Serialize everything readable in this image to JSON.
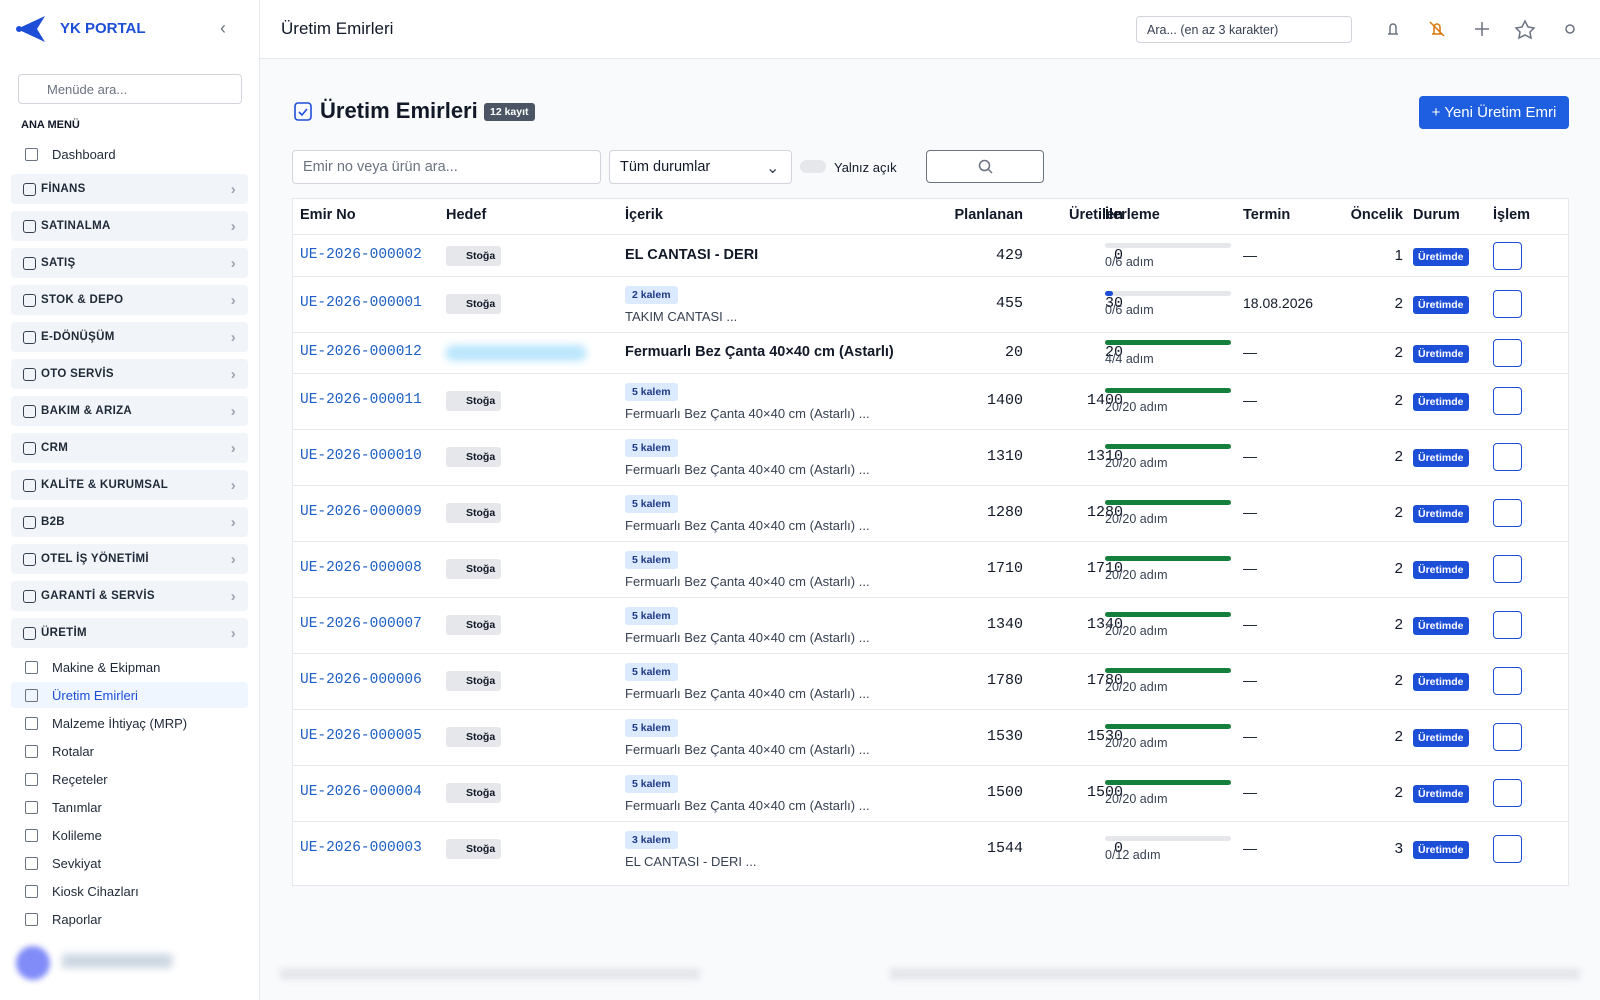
{
  "sidebar": {
    "brand": "YK PORTAL",
    "search_placeholder": "Menüde ara...",
    "section": "ANA MENÜ",
    "top_item": "Dashboard",
    "groups": [
      "FİNANS",
      "SATINALMA",
      "SATIŞ",
      "STOK & DEPO",
      "E-DÖNÜŞÜM",
      "OTO SERVİS",
      "BAKIM & ARIZA",
      "CRM",
      "KALİTE & KURUMSAL",
      "B2B",
      "OTEL İŞ YÖNETİMİ",
      "GARANTİ & SERVİS",
      "ÜRETİM"
    ],
    "sub_items": [
      "Makine & Ekipman",
      "Üretim Emirleri",
      "Malzeme İhtiyaç (MRP)",
      "Rotalar",
      "Reçeteler",
      "Tanımlar",
      "Kolileme",
      "Sevkiyat",
      "Kiosk Cihazları",
      "Raporlar"
    ]
  },
  "topbar": {
    "title": "Üretim Emirleri",
    "search_placeholder": "Ara... (en az 3 karakter)"
  },
  "page": {
    "title": "Üretim Emirleri",
    "count": "12 kayıt",
    "new_button": "+ Yeni Üretim Emri",
    "filter_placeholder": "Emir no veya ürün ara...",
    "status_select": "Tüm durumlar",
    "toggle_label": "Yalnız açık"
  },
  "table": {
    "columns": [
      "Emir No",
      "Hedef",
      "İçerik",
      "Planlanan",
      "Üretilen",
      "İlerleme",
      "Termin",
      "Öncelik",
      "Durum",
      "İşlem"
    ],
    "rows": [
      {
        "no": "UE-2026-000002",
        "target": "Stoğa",
        "badge": null,
        "content": "EL CANTASI - DERI",
        "planned": 429,
        "produced": 0,
        "progress": "0/6 adım",
        "deadline": "—",
        "priority": 1,
        "status": "Üretimde"
      },
      {
        "no": "UE-2026-000001",
        "target": "Stoğa",
        "badge": "2 kalem",
        "content": "TAKIM CANTASI ...",
        "planned": 455,
        "produced": 30,
        "progress": "0/6 adım",
        "deadline": "18.08.2026",
        "priority": 2,
        "status": "Üretimde"
      },
      {
        "no": "UE-2026-000012",
        "target": null,
        "badge": null,
        "content": "Fermuarlı Bez Çanta 40×40 cm (Astarlı)",
        "planned": 20,
        "produced": 20,
        "progress": "4/4 adım",
        "deadline": "—",
        "priority": 2,
        "status": "Üretimde"
      },
      {
        "no": "UE-2026-000011",
        "target": "Stoğa",
        "badge": "5 kalem",
        "content": "Fermuarlı Bez Çanta 40×40 cm (Astarlı) ...",
        "planned": 1400,
        "produced": 1400,
        "progress": "20/20 adım",
        "deadline": "—",
        "priority": 2,
        "status": "Üretimde"
      },
      {
        "no": "UE-2026-000010",
        "target": "Stoğa",
        "badge": "5 kalem",
        "content": "Fermuarlı Bez Çanta 40×40 cm (Astarlı) ...",
        "planned": 1310,
        "produced": 1310,
        "progress": "20/20 adım",
        "deadline": "—",
        "priority": 2,
        "status": "Üretimde"
      },
      {
        "no": "UE-2026-000009",
        "target": "Stoğa",
        "badge": "5 kalem",
        "content": "Fermuarlı Bez Çanta 40×40 cm (Astarlı) ...",
        "planned": 1280,
        "produced": 1280,
        "progress": "20/20 adım",
        "deadline": "—",
        "priority": 2,
        "status": "Üretimde"
      },
      {
        "no": "UE-2026-000008",
        "target": "Stoğa",
        "badge": "5 kalem",
        "content": "Fermuarlı Bez Çanta 40×40 cm (Astarlı) ...",
        "planned": 1710,
        "produced": 1710,
        "progress": "20/20 adım",
        "deadline": "—",
        "priority": 2,
        "status": "Üretimde"
      },
      {
        "no": "UE-2026-000007",
        "target": "Stoğa",
        "badge": "5 kalem",
        "content": "Fermuarlı Bez Çanta 40×40 cm (Astarlı) ...",
        "planned": 1340,
        "produced": 1340,
        "progress": "20/20 adım",
        "deadline": "—",
        "priority": 2,
        "status": "Üretimde"
      },
      {
        "no": "UE-2026-000006",
        "target": "Stoğa",
        "badge": "5 kalem",
        "content": "Fermuarlı Bez Çanta 40×40 cm (Astarlı) ...",
        "planned": 1780,
        "produced": 1780,
        "progress": "20/20 adım",
        "deadline": "—",
        "priority": 2,
        "status": "Üretimde"
      },
      {
        "no": "UE-2026-000005",
        "target": "Stoğa",
        "badge": "5 kalem",
        "content": "Fermuarlı Bez Çanta 40×40 cm (Astarlı) ...",
        "planned": 1530,
        "produced": 1530,
        "progress": "20/20 adım",
        "deadline": "—",
        "priority": 2,
        "status": "Üretimde"
      },
      {
        "no": "UE-2026-000004",
        "target": "Stoğa",
        "badge": "5 kalem",
        "content": "Fermuarlı Bez Çanta 40×40 cm (Astarlı) ...",
        "planned": 1500,
        "produced": 1500,
        "progress": "20/20 adım",
        "deadline": "—",
        "priority": 2,
        "status": "Üretimde"
      },
      {
        "no": "UE-2026-000003",
        "target": "Stoğa",
        "badge": "3 kalem",
        "content": "EL CANTASI - DERI ...",
        "planned": 1544,
        "produced": 0,
        "progress": "0/12 adım",
        "deadline": "—",
        "priority": 3,
        "status": "Üretimde"
      }
    ]
  }
}
